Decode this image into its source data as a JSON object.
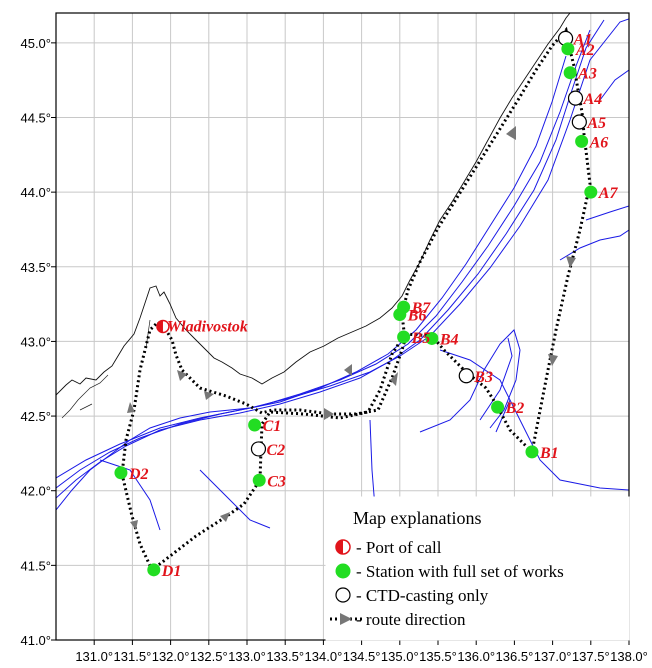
{
  "map": {
    "x_ticks": [
      "131.0°",
      "131.5°",
      "132.0°",
      "132.5°",
      "133.0°",
      "133.5°",
      "134.0°",
      "134.5°",
      "135.0°",
      "135.5°",
      "136.0°",
      "136.5°",
      "137.0°",
      "137.5°",
      "138.0°"
    ],
    "y_ticks": [
      "45.0°",
      "44.5°",
      "44.0°",
      "43.5°",
      "43.0°",
      "42.5°",
      "42.0°",
      "41.5°",
      "41.0°"
    ],
    "extent": {
      "lon": [
        130.5,
        138.0
      ],
      "lat": [
        41.0,
        45.2
      ]
    },
    "port": {
      "name": "Wladivostok",
      "lon": 131.9,
      "lat": 43.1
    },
    "stations": [
      {
        "id": "A1",
        "type": "ctd",
        "lon": 137.17,
        "lat": 45.03
      },
      {
        "id": "A2",
        "type": "full",
        "lon": 137.2,
        "lat": 44.96
      },
      {
        "id": "A3",
        "type": "full",
        "lon": 137.23,
        "lat": 44.8
      },
      {
        "id": "A4",
        "type": "ctd",
        "lon": 137.3,
        "lat": 44.63
      },
      {
        "id": "A5",
        "type": "ctd",
        "lon": 137.35,
        "lat": 44.47
      },
      {
        "id": "A6",
        "type": "full",
        "lon": 137.38,
        "lat": 44.34
      },
      {
        "id": "A7",
        "type": "full",
        "lon": 137.5,
        "lat": 44.0
      },
      {
        "id": "B1",
        "type": "full",
        "lon": 136.73,
        "lat": 42.26
      },
      {
        "id": "B2",
        "type": "full",
        "lon": 136.28,
        "lat": 42.56
      },
      {
        "id": "B3",
        "type": "ctd",
        "lon": 135.87,
        "lat": 42.77
      },
      {
        "id": "B4",
        "type": "full",
        "lon": 135.42,
        "lat": 43.02
      },
      {
        "id": "B5",
        "type": "full",
        "lon": 135.05,
        "lat": 43.03
      },
      {
        "id": "B6",
        "type": "full",
        "lon": 135.0,
        "lat": 43.18
      },
      {
        "id": "B7",
        "type": "full",
        "lon": 135.05,
        "lat": 43.23
      },
      {
        "id": "C1",
        "type": "full",
        "lon": 133.1,
        "lat": 42.44
      },
      {
        "id": "C2",
        "type": "ctd",
        "lon": 133.15,
        "lat": 42.28
      },
      {
        "id": "C3",
        "type": "full",
        "lon": 133.16,
        "lat": 42.07
      },
      {
        "id": "D1",
        "type": "full",
        "lon": 131.78,
        "lat": 41.47
      },
      {
        "id": "D2",
        "type": "full",
        "lon": 131.35,
        "lat": 42.12
      }
    ],
    "legend": {
      "title": "Map explanations",
      "items": [
        {
          "symbol": "port",
          "label": "- Port of call"
        },
        {
          "symbol": "full",
          "label": "- Station with full set of works"
        },
        {
          "symbol": "ctd",
          "label": "- CTD-casting only"
        },
        {
          "symbol": "route",
          "label": "- route direction"
        }
      ]
    },
    "colors": {
      "station_full": "#22dd22",
      "port_red": "#e1141b",
      "label_red": "#e1141b",
      "isobath": "#1a1ae6",
      "route": "#000000",
      "arrow": "#777777"
    }
  }
}
